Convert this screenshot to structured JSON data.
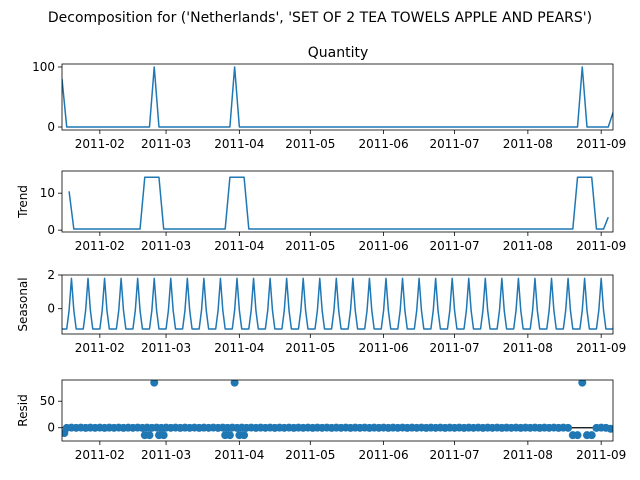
{
  "title": "Decomposition for ('Netherlands', 'SET OF 2 TEA TOWELS APPLE AND PEARS')",
  "colors": {
    "line": "#1f77b4",
    "axis": "#000000",
    "zero_line": "#000000"
  },
  "x_axis": {
    "start": "2011-01-16",
    "end": "2011-09-06",
    "ticks": [
      {
        "date": "2011-02-01",
        "label": "2011-02"
      },
      {
        "date": "2011-03-01",
        "label": "2011-03"
      },
      {
        "date": "2011-04-01",
        "label": "2011-04"
      },
      {
        "date": "2011-05-01",
        "label": "2011-05"
      },
      {
        "date": "2011-06-01",
        "label": "2011-06"
      },
      {
        "date": "2011-07-01",
        "label": "2011-07"
      },
      {
        "date": "2011-08-01",
        "label": "2011-08"
      },
      {
        "date": "2011-09-01",
        "label": "2011-09"
      }
    ]
  },
  "chart_data": [
    {
      "type": "line",
      "title": "Quantity",
      "ylabel": "",
      "ylim": [
        -5,
        105
      ],
      "yticks": [
        0,
        100
      ],
      "grid": false,
      "series": [
        {
          "points": [
            [
              "2011-01-16",
              80
            ],
            [
              "2011-01-18",
              0
            ],
            [
              "2011-02-22",
              0
            ],
            [
              "2011-02-24",
              100
            ],
            [
              "2011-02-26",
              0
            ],
            [
              "2011-03-28",
              0
            ],
            [
              "2011-03-30",
              100
            ],
            [
              "2011-04-01",
              0
            ],
            [
              "2011-08-22",
              0
            ],
            [
              "2011-08-24",
              100
            ],
            [
              "2011-08-26",
              0
            ],
            [
              "2011-09-04",
              0
            ],
            [
              "2011-09-06",
              24
            ]
          ]
        }
      ]
    },
    {
      "type": "line",
      "title": "",
      "ylabel": "Trend",
      "ylim": [
        -0.5,
        16
      ],
      "yticks": [
        0,
        10
      ],
      "grid": false,
      "series": [
        {
          "segments": [
            [
              [
                "2011-01-19",
                10.5
              ],
              [
                "2011-01-21",
                0.3
              ],
              [
                "2011-02-18",
                0.3
              ],
              [
                "2011-02-20",
                14.3
              ],
              [
                "2011-02-26",
                14.3
              ],
              [
                "2011-02-28",
                0.3
              ],
              [
                "2011-03-26",
                0.3
              ],
              [
                "2011-03-28",
                14.3
              ],
              [
                "2011-04-03",
                14.3
              ],
              [
                "2011-04-05",
                0.3
              ],
              [
                "2011-08-20",
                0.3
              ],
              [
                "2011-08-22",
                14.3
              ],
              [
                "2011-08-28",
                14.3
              ],
              [
                "2011-08-30",
                0.3
              ],
              [
                "2011-09-02",
                0.3
              ],
              [
                "2011-09-04",
                3.5
              ]
            ]
          ]
        }
      ]
    },
    {
      "type": "line",
      "title": "",
      "ylabel": "Seasonal",
      "ylim": [
        -1.5,
        2
      ],
      "yticks": [
        0,
        2
      ],
      "grid": false,
      "pattern": {
        "start": "2011-01-16",
        "period_days": 7,
        "cycle": [
          -1.2,
          -1.2,
          -1.2,
          -0.1,
          1.8,
          -0.1,
          -1.2
        ]
      }
    },
    {
      "type": "scatter",
      "title": "",
      "ylabel": "Resid",
      "ylim": [
        -25,
        90
      ],
      "yticks": [
        0,
        50
      ],
      "grid": false,
      "zero_line": true,
      "base": {
        "start": "2011-01-18",
        "end": "2011-09-04",
        "step_days": 2,
        "default": -0.3,
        "wave": [
          -0.3,
          0.2,
          -0.2,
          0.3
        ]
      },
      "points": [
        [
          "2011-01-17",
          -10
        ],
        [
          "2011-02-20",
          -14
        ],
        [
          "2011-02-22",
          -14
        ],
        [
          "2011-02-24",
          85
        ],
        [
          "2011-02-26",
          -14
        ],
        [
          "2011-02-28",
          -14
        ],
        [
          "2011-03-26",
          -14
        ],
        [
          "2011-03-28",
          -14
        ],
        [
          "2011-03-30",
          85
        ],
        [
          "2011-04-01",
          -14
        ],
        [
          "2011-04-03",
          -14
        ],
        [
          "2011-08-20",
          -14
        ],
        [
          "2011-08-22",
          -14
        ],
        [
          "2011-08-24",
          85
        ],
        [
          "2011-08-26",
          -14
        ],
        [
          "2011-08-28",
          -14
        ],
        [
          "2011-09-05",
          -2
        ]
      ]
    }
  ]
}
